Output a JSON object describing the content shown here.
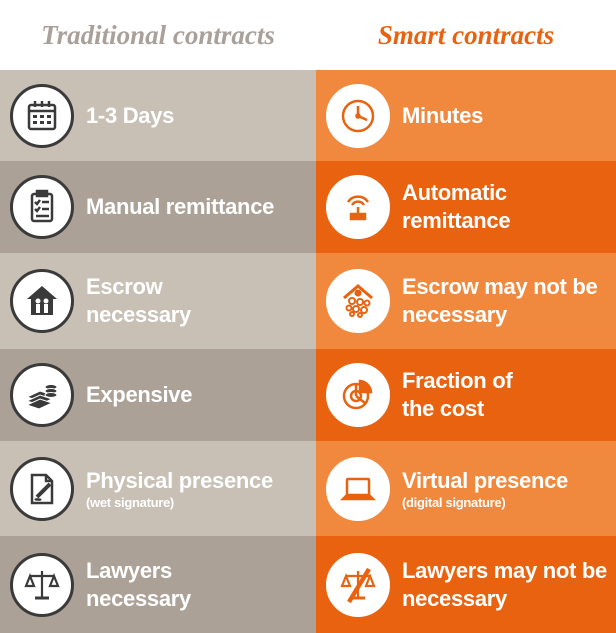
{
  "header": {
    "left_title": "Traditional contracts",
    "right_title": "Smart contracts"
  },
  "colors": {
    "left_light": "#c8bfb5",
    "left_dark": "#aca196",
    "right_light": "#f0893e",
    "right_dark": "#e8620f",
    "icon_stroke_left": "#3a3a3a",
    "icon_stroke_right": "#e8620f"
  },
  "rows": [
    {
      "left": {
        "label": "1-3 Days",
        "icon": "calendar-icon"
      },
      "right": {
        "label": "Minutes",
        "icon": "clock-icon"
      }
    },
    {
      "left": {
        "label": "Manual remittance",
        "icon": "clipboard-icon"
      },
      "right": {
        "label": "Automatic remittance",
        "icon": "signal-stamp-icon"
      }
    },
    {
      "left": {
        "label": "Escrow necessary",
        "icon": "house-people-icon"
      },
      "right": {
        "label": "Escrow may not be necessary",
        "icon": "house-network-icon"
      }
    },
    {
      "left": {
        "label": "Expensive",
        "icon": "money-stack-icon"
      },
      "right": {
        "label": "Fraction of the cost",
        "icon": "pie-chart-icon"
      }
    },
    {
      "left": {
        "label": "Physical presence",
        "sublabel": "(wet signature)",
        "icon": "document-pen-icon"
      },
      "right": {
        "label": "Virtual presence",
        "sublabel": "(digital signature)",
        "icon": "laptop-icon"
      }
    },
    {
      "left": {
        "label": "Lawyers necessary",
        "icon": "scales-icon"
      },
      "right": {
        "label": "Lawyers may not be necessary",
        "icon": "scales-crossed-icon"
      }
    }
  ]
}
